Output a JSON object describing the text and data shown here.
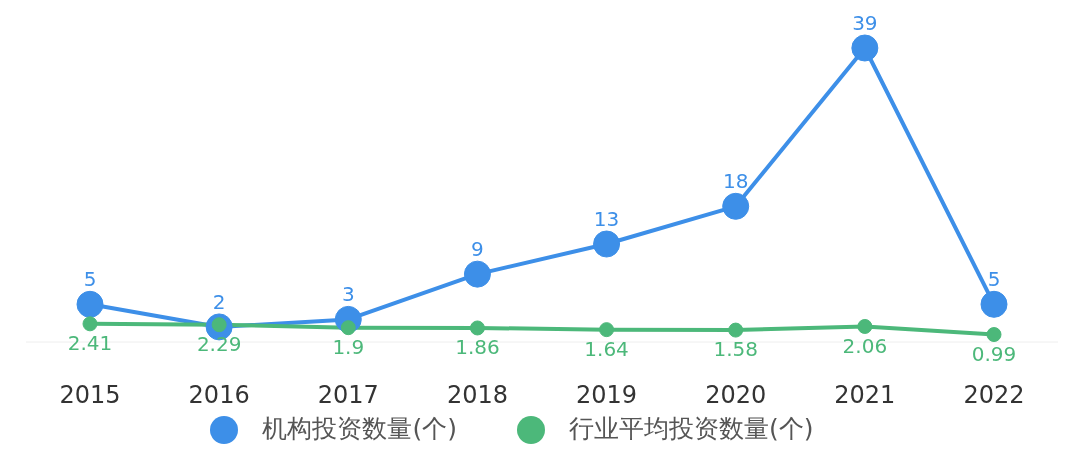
{
  "chart_data": {
    "type": "line",
    "categories": [
      "2015",
      "2016",
      "2017",
      "2018",
      "2019",
      "2020",
      "2021",
      "2022"
    ],
    "series": [
      {
        "name": "机构投资数量(个)",
        "color": "#3d8fe8",
        "values": [
          5,
          2,
          3,
          9,
          13,
          18,
          39,
          5
        ]
      },
      {
        "name": "行业平均投资数量(个)",
        "color": "#4cb87a",
        "values": [
          2.41,
          2.29,
          1.9,
          1.86,
          1.64,
          1.58,
          2.06,
          0.99
        ]
      }
    ],
    "data_labels": true,
    "legend": "bottom",
    "grid": false,
    "marker": "circle",
    "line_style": "solid"
  }
}
